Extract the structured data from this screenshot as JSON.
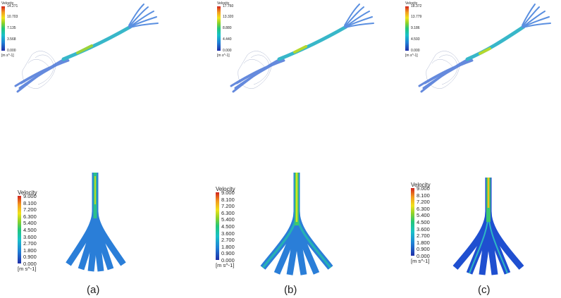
{
  "colorbars": {
    "top_a": {
      "title": "Velocity",
      "ticks": [
        "14.271",
        "10.703",
        "7.135",
        "3.568",
        "0.000"
      ],
      "unit": "[m s^-1]"
    },
    "top_b": {
      "title": "Velocity",
      "ticks": [
        "17.760",
        "13.320",
        "8.880",
        "4.440",
        "0.000"
      ],
      "unit": "[m s^-1]"
    },
    "top_c": {
      "title": "Velocity",
      "ticks": [
        "18.372",
        "13.779",
        "9.186",
        "4.593",
        "0.000"
      ],
      "unit": "[m s^-1]"
    },
    "bottom": {
      "title": "Velocity",
      "ticks": [
        "9.000",
        "8.100",
        "7.200",
        "6.300",
        "5.400",
        "4.500",
        "3.600",
        "2.700",
        "1.800",
        "0.900",
        "0.000"
      ],
      "unit": "[m s^-1]"
    }
  },
  "captions": {
    "a": "(a)",
    "b": "(b)",
    "c": "(c)"
  },
  "colors": {
    "jet_low": "#1f2fa8",
    "jet_mid": "#22c77a",
    "jet_high": "#d2231e",
    "tube": "#3a8de0"
  }
}
